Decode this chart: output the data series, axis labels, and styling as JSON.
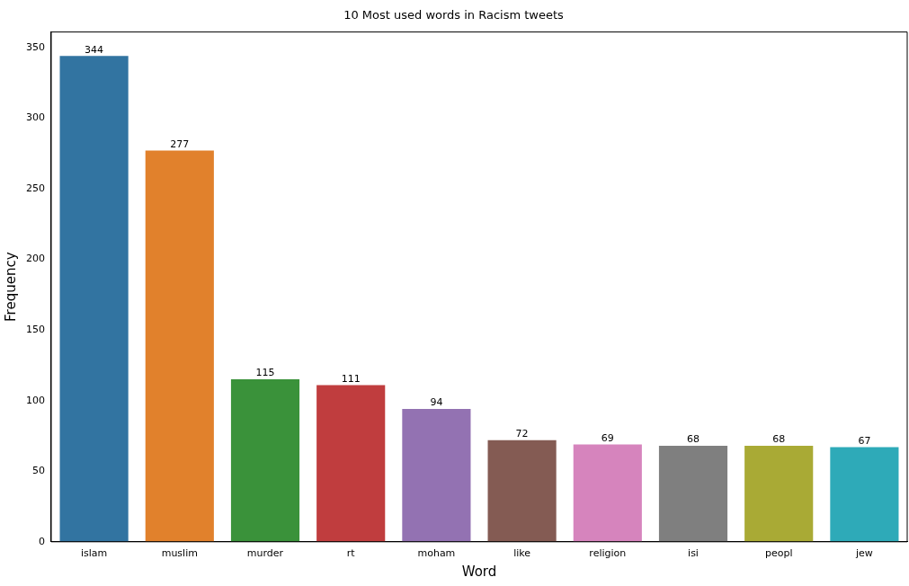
{
  "chart_data": {
    "type": "bar",
    "title": "10 Most used words in Racism tweets",
    "xlabel": "Word",
    "ylabel": "Frequency",
    "categories": [
      "islam",
      "muslim",
      "murder",
      "rt",
      "moham",
      "like",
      "religion",
      "isi",
      "peopl",
      "jew"
    ],
    "values": [
      344,
      277,
      115,
      111,
      94,
      72,
      69,
      68,
      68,
      67
    ],
    "colors": [
      "#3274a1",
      "#e1812c",
      "#3a923a",
      "#c03d3e",
      "#9372b2",
      "#845b53",
      "#d684bd",
      "#7f7f7f",
      "#a9aa35",
      "#2eaab8"
    ],
    "ylim": [
      0,
      361
    ],
    "yticks": [
      0,
      50,
      100,
      150,
      200,
      250,
      300,
      350
    ],
    "data_labels": true,
    "grid": false,
    "legend": false
  }
}
